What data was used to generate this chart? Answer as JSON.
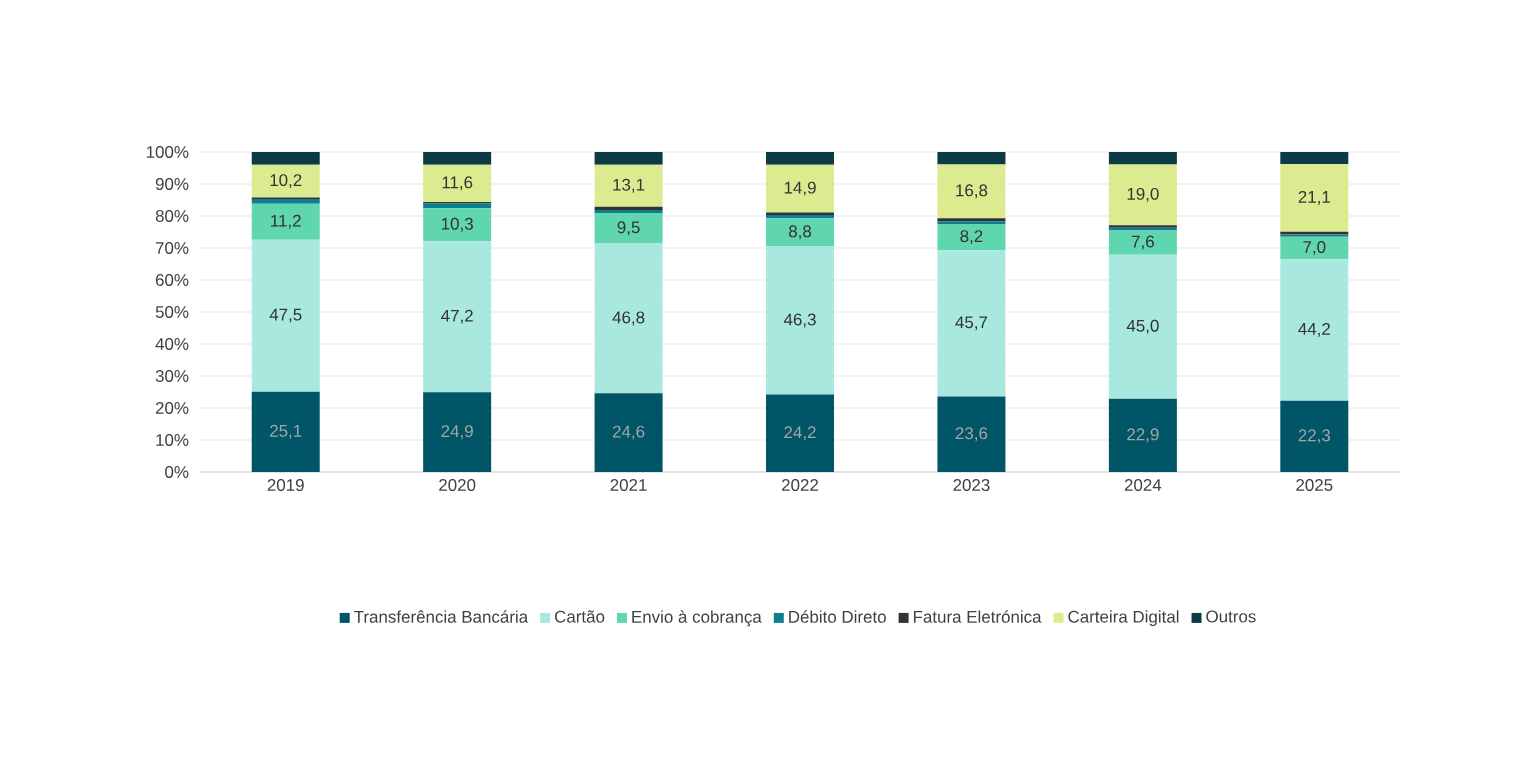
{
  "chart_data": {
    "type": "bar",
    "stacked": true,
    "categories": [
      "2019",
      "2020",
      "2021",
      "2022",
      "2023",
      "2024",
      "2025"
    ],
    "series": [
      {
        "name": "Transferência Bancária",
        "color": "#005566",
        "values": [
          25.1,
          24.9,
          24.6,
          24.2,
          23.6,
          22.9,
          22.3
        ],
        "value_labels": [
          "25,1",
          "24,9",
          "24,6",
          "24,2",
          "23,6",
          "22,9",
          "22,3"
        ]
      },
      {
        "name": "Cartão",
        "color": "#a8e8de",
        "values": [
          47.5,
          47.2,
          46.8,
          46.3,
          45.7,
          45.0,
          44.2
        ],
        "value_labels": [
          "47,5",
          "47,2",
          "46,8",
          "46,3",
          "45,7",
          "45,0",
          "44,2"
        ]
      },
      {
        "name": "Envio à cobrança",
        "color": "#5fd6b0",
        "values": [
          11.2,
          10.3,
          9.5,
          8.8,
          8.2,
          7.6,
          7.0
        ],
        "value_labels": [
          "11,2",
          "10,3",
          "9,5",
          "8,8",
          "8,2",
          "7,6",
          "7,0"
        ]
      },
      {
        "name": "Débito Direto",
        "color": "#0e7f8f",
        "values": [
          1.5,
          1.5,
          1.0,
          1.0,
          0.8,
          0.8,
          0.7
        ]
      },
      {
        "name": "Fatura Eletrónica",
        "color": "#333333",
        "values": [
          0.5,
          0.5,
          1.0,
          0.8,
          1.0,
          0.8,
          0.9
        ]
      },
      {
        "name": "Carteira Digital",
        "color": "#dceb8f",
        "values": [
          10.2,
          11.6,
          13.1,
          14.9,
          16.8,
          19.0,
          21.1
        ],
        "value_labels": [
          "10,2",
          "11,6",
          "13,1",
          "14,9",
          "16,8",
          "19,0",
          "21,1"
        ]
      },
      {
        "name": "Outros",
        "color": "#0c3a45",
        "values": [
          4.0,
          4.0,
          4.0,
          4.0,
          3.9,
          3.9,
          3.8
        ]
      }
    ],
    "ylim": [
      0,
      100
    ],
    "yticks": [
      {
        "value": 0,
        "label": "0%"
      },
      {
        "value": 10,
        "label": "10%"
      },
      {
        "value": 20,
        "label": "20%"
      },
      {
        "value": 30,
        "label": "30%"
      },
      {
        "value": 40,
        "label": "40%"
      },
      {
        "value": 50,
        "label": "50%"
      },
      {
        "value": 60,
        "label": "60%"
      },
      {
        "value": 70,
        "label": "70%"
      },
      {
        "value": 80,
        "label": "80%"
      },
      {
        "value": 90,
        "label": "90%"
      },
      {
        "value": 100,
        "label": "100%"
      }
    ],
    "grid": "y",
    "legend": "bottom"
  }
}
